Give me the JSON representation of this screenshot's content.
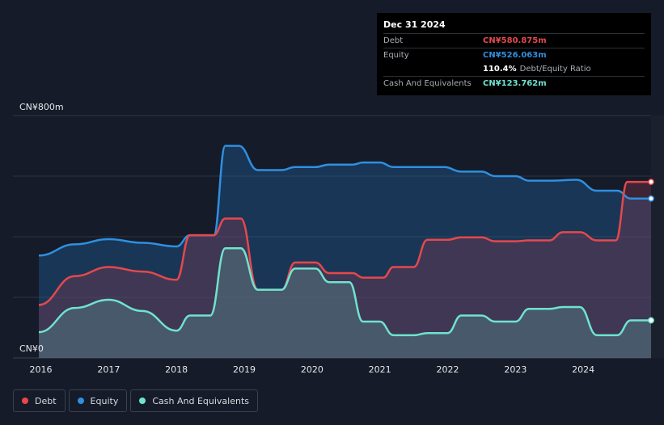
{
  "tooltip": {
    "date": "Dec 31 2024",
    "debt_label": "Debt",
    "debt_value": "CN¥580.875m",
    "equity_label": "Equity",
    "equity_value": "CN¥526.063m",
    "ratio_value": "110.4%",
    "ratio_label": "Debt/Equity Ratio",
    "cash_label": "Cash And Equivalents",
    "cash_value": "CN¥123.762m"
  },
  "colors": {
    "debt": "#e5484d",
    "equity": "#2f8fe0",
    "cash": "#6fe3cf",
    "background": "#151b28"
  },
  "chart_data": {
    "type": "area",
    "currency_unit": "CN¥ millions",
    "y_top_label": "CN¥800m",
    "y_bottom_label": "CN¥0",
    "ylim": [
      0,
      800
    ],
    "xlim": [
      2015.97,
      2025.0
    ],
    "x_ticks": [
      "2016",
      "2017",
      "2018",
      "2019",
      "2020",
      "2021",
      "2022",
      "2023",
      "2024"
    ],
    "grid": true,
    "legend_position": "bottom-left",
    "series": [
      {
        "name": "Equity",
        "color": "#2f8fe0",
        "points": [
          [
            2015.97,
            338
          ],
          [
            2016.5,
            375
          ],
          [
            2017.0,
            392
          ],
          [
            2017.5,
            380
          ],
          [
            2018.0,
            368
          ],
          [
            2018.2,
            405
          ],
          [
            2018.55,
            405
          ],
          [
            2018.72,
            700
          ],
          [
            2018.92,
            700
          ],
          [
            2019.2,
            620
          ],
          [
            2019.55,
            620
          ],
          [
            2019.75,
            630
          ],
          [
            2020.05,
            630
          ],
          [
            2020.25,
            638
          ],
          [
            2020.6,
            638
          ],
          [
            2020.75,
            645
          ],
          [
            2021.0,
            645
          ],
          [
            2021.2,
            630
          ],
          [
            2021.5,
            630
          ],
          [
            2021.95,
            630
          ],
          [
            2022.2,
            615
          ],
          [
            2022.5,
            615
          ],
          [
            2022.7,
            600
          ],
          [
            2023.0,
            600
          ],
          [
            2023.2,
            585
          ],
          [
            2023.5,
            585
          ],
          [
            2023.9,
            588
          ],
          [
            2024.2,
            552
          ],
          [
            2024.5,
            552
          ],
          [
            2024.7,
            526
          ],
          [
            2025.0,
            526
          ]
        ]
      },
      {
        "name": "Debt",
        "color": "#e5484d",
        "points": [
          [
            2015.97,
            175
          ],
          [
            2016.5,
            270
          ],
          [
            2017.0,
            300
          ],
          [
            2017.5,
            285
          ],
          [
            2018.0,
            258
          ],
          [
            2018.2,
            405
          ],
          [
            2018.55,
            405
          ],
          [
            2018.72,
            460
          ],
          [
            2018.95,
            460
          ],
          [
            2019.2,
            225
          ],
          [
            2019.55,
            225
          ],
          [
            2019.75,
            315
          ],
          [
            2020.05,
            315
          ],
          [
            2020.25,
            280
          ],
          [
            2020.6,
            280
          ],
          [
            2020.75,
            265
          ],
          [
            2021.05,
            265
          ],
          [
            2021.2,
            300
          ],
          [
            2021.5,
            300
          ],
          [
            2021.7,
            390
          ],
          [
            2022.0,
            390
          ],
          [
            2022.2,
            398
          ],
          [
            2022.5,
            398
          ],
          [
            2022.7,
            385
          ],
          [
            2023.0,
            385
          ],
          [
            2023.2,
            388
          ],
          [
            2023.5,
            388
          ],
          [
            2023.7,
            415
          ],
          [
            2023.95,
            415
          ],
          [
            2024.2,
            388
          ],
          [
            2024.48,
            388
          ],
          [
            2024.65,
            581
          ],
          [
            2025.0,
            581
          ]
        ]
      },
      {
        "name": "Cash And Equivalents",
        "color": "#6fe3cf",
        "points": [
          [
            2015.97,
            85
          ],
          [
            2016.5,
            165
          ],
          [
            2017.0,
            192
          ],
          [
            2017.5,
            155
          ],
          [
            2018.0,
            90
          ],
          [
            2018.2,
            140
          ],
          [
            2018.5,
            140
          ],
          [
            2018.72,
            362
          ],
          [
            2018.95,
            362
          ],
          [
            2019.2,
            225
          ],
          [
            2019.55,
            225
          ],
          [
            2019.75,
            295
          ],
          [
            2020.05,
            295
          ],
          [
            2020.25,
            250
          ],
          [
            2020.55,
            250
          ],
          [
            2020.75,
            120
          ],
          [
            2021.0,
            120
          ],
          [
            2021.2,
            75
          ],
          [
            2021.5,
            75
          ],
          [
            2021.7,
            82
          ],
          [
            2022.0,
            82
          ],
          [
            2022.2,
            140
          ],
          [
            2022.5,
            140
          ],
          [
            2022.7,
            120
          ],
          [
            2023.0,
            120
          ],
          [
            2023.2,
            162
          ],
          [
            2023.5,
            162
          ],
          [
            2023.7,
            168
          ],
          [
            2023.95,
            168
          ],
          [
            2024.2,
            75
          ],
          [
            2024.5,
            75
          ],
          [
            2024.7,
            124
          ],
          [
            2025.0,
            124
          ]
        ]
      }
    ]
  }
}
